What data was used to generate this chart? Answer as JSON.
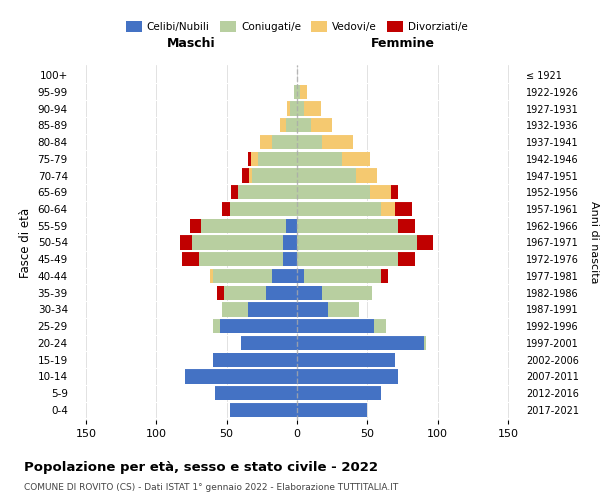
{
  "age_groups": [
    "0-4",
    "5-9",
    "10-14",
    "15-19",
    "20-24",
    "25-29",
    "30-34",
    "35-39",
    "40-44",
    "45-49",
    "50-54",
    "55-59",
    "60-64",
    "65-69",
    "70-74",
    "75-79",
    "80-84",
    "85-89",
    "90-94",
    "95-99",
    "100+"
  ],
  "birth_years": [
    "2017-2021",
    "2012-2016",
    "2007-2011",
    "2002-2006",
    "1997-2001",
    "1992-1996",
    "1987-1991",
    "1982-1986",
    "1977-1981",
    "1972-1976",
    "1967-1971",
    "1962-1966",
    "1957-1961",
    "1952-1956",
    "1947-1951",
    "1942-1946",
    "1937-1941",
    "1932-1936",
    "1927-1931",
    "1922-1926",
    "≤ 1921"
  ],
  "male": {
    "celibi": [
      48,
      58,
      80,
      60,
      40,
      55,
      35,
      22,
      18,
      10,
      10,
      8,
      0,
      0,
      0,
      0,
      0,
      0,
      0,
      0,
      0
    ],
    "coniugati": [
      0,
      0,
      0,
      0,
      0,
      5,
      18,
      30,
      42,
      60,
      65,
      60,
      48,
      42,
      32,
      28,
      18,
      8,
      5,
      2,
      0
    ],
    "vedovi": [
      0,
      0,
      0,
      0,
      0,
      0,
      0,
      0,
      2,
      0,
      0,
      0,
      0,
      0,
      2,
      5,
      8,
      4,
      2,
      0,
      0
    ],
    "divorziati": [
      0,
      0,
      0,
      0,
      0,
      0,
      0,
      5,
      0,
      12,
      8,
      8,
      5,
      5,
      5,
      2,
      0,
      0,
      0,
      0,
      0
    ]
  },
  "female": {
    "nubili": [
      50,
      60,
      72,
      70,
      90,
      55,
      22,
      18,
      5,
      0,
      0,
      0,
      0,
      0,
      0,
      0,
      0,
      0,
      0,
      0,
      0
    ],
    "coniugate": [
      0,
      0,
      0,
      0,
      2,
      8,
      22,
      35,
      55,
      72,
      85,
      72,
      60,
      52,
      42,
      32,
      18,
      10,
      5,
      2,
      0
    ],
    "vedove": [
      0,
      0,
      0,
      0,
      0,
      0,
      0,
      0,
      0,
      0,
      0,
      0,
      10,
      15,
      15,
      20,
      22,
      15,
      12,
      5,
      0
    ],
    "divorziate": [
      0,
      0,
      0,
      0,
      0,
      0,
      0,
      0,
      5,
      12,
      12,
      12,
      12,
      5,
      0,
      0,
      0,
      0,
      0,
      0,
      0
    ]
  },
  "colors": {
    "celibi": "#4472c4",
    "coniugati": "#b8cfa0",
    "vedovi": "#f5c970",
    "divorziati": "#c00000"
  },
  "xlim": 160,
  "title": "Popolazione per età, sesso e stato civile - 2022",
  "subtitle": "COMUNE DI ROVITO (CS) - Dati ISTAT 1° gennaio 2022 - Elaborazione TUTTITALIA.IT",
  "ylabel": "Fasce di età",
  "ylabel_right": "Anni di nascita",
  "xlabel_left": "Maschi",
  "xlabel_right": "Femmine",
  "bg_color": "#ffffff",
  "grid_color": "#cccccc"
}
